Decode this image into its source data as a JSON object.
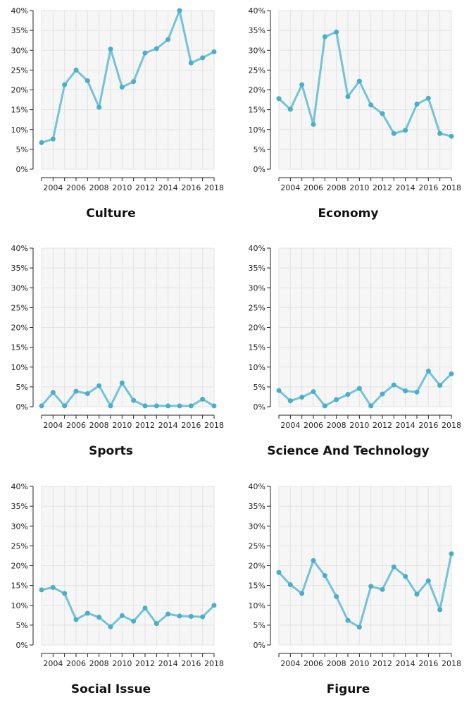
{
  "colors": {
    "line": "#74c3d6",
    "point": "#4aaec8",
    "plot_bg": "#f6f6f6",
    "grid": "#e3e3e3",
    "axis": "#222222"
  },
  "chart_data": [
    {
      "type": "line",
      "title": "Culture",
      "x": [
        2003,
        2004,
        2005,
        2006,
        2007,
        2008,
        2009,
        2010,
        2011,
        2012,
        2013,
        2014,
        2015,
        2016,
        2017,
        2018
      ],
      "values": [
        6.7,
        7.6,
        21.3,
        25.0,
        22.3,
        15.6,
        30.3,
        20.7,
        22.1,
        29.3,
        30.4,
        32.7,
        40.0,
        26.8,
        28.1,
        29.6
      ],
      "xticks": [
        "2004",
        "2006",
        "2008",
        "2010",
        "2012",
        "2014",
        "2016",
        "2018"
      ],
      "yticks": [
        "0%",
        "5%",
        "10%",
        "15%",
        "20%",
        "25%",
        "30%",
        "35%",
        "40%"
      ],
      "ylim": [
        0,
        40
      ],
      "grid": true
    },
    {
      "type": "line",
      "title": "Economy",
      "x": [
        2003,
        2004,
        2005,
        2006,
        2007,
        2008,
        2009,
        2010,
        2011,
        2012,
        2013,
        2014,
        2015,
        2016,
        2017,
        2018
      ],
      "values": [
        17.8,
        15.1,
        21.3,
        11.3,
        33.4,
        34.6,
        18.3,
        22.2,
        16.2,
        14.0,
        9.0,
        9.8,
        16.4,
        17.9,
        9.0,
        8.3
      ],
      "xticks": [
        "2004",
        "2006",
        "2008",
        "2010",
        "2012",
        "2014",
        "2016",
        "2018"
      ],
      "yticks": [
        "0%",
        "5%",
        "10%",
        "15%",
        "20%",
        "25%",
        "30%",
        "35%",
        "40%"
      ],
      "ylim": [
        0,
        40
      ],
      "grid": true
    },
    {
      "type": "line",
      "title": "Sports",
      "x": [
        2003,
        2004,
        2005,
        2006,
        2007,
        2008,
        2009,
        2010,
        2011,
        2012,
        2013,
        2014,
        2015,
        2016,
        2017,
        2018
      ],
      "values": [
        0.2,
        3.6,
        0.2,
        3.9,
        3.3,
        5.3,
        0.2,
        6.0,
        1.6,
        0.2,
        0.2,
        0.2,
        0.2,
        0.2,
        1.9,
        0.2
      ],
      "xticks": [
        "2004",
        "2006",
        "2008",
        "2010",
        "2012",
        "2014",
        "2016",
        "2018"
      ],
      "yticks": [
        "0%",
        "5%",
        "10%",
        "15%",
        "20%",
        "25%",
        "30%",
        "35%",
        "40%"
      ],
      "ylim": [
        0,
        40
      ],
      "grid": true
    },
    {
      "type": "line",
      "title": "Science And Technology",
      "x": [
        2003,
        2004,
        2005,
        2006,
        2007,
        2008,
        2009,
        2010,
        2011,
        2012,
        2013,
        2014,
        2015,
        2016,
        2017,
        2018
      ],
      "values": [
        4.1,
        1.5,
        2.4,
        3.8,
        0.2,
        1.8,
        3.1,
        4.6,
        0.2,
        3.2,
        5.5,
        4.0,
        3.7,
        9.0,
        5.4,
        8.3
      ],
      "xticks": [
        "2004",
        "2006",
        "2008",
        "2010",
        "2012",
        "2014",
        "2016",
        "2018"
      ],
      "yticks": [
        "0%",
        "5%",
        "10%",
        "15%",
        "20%",
        "25%",
        "30%",
        "35%",
        "40%"
      ],
      "ylim": [
        0,
        40
      ],
      "grid": true
    },
    {
      "type": "line",
      "title": "Social Issue",
      "x": [
        2003,
        2004,
        2005,
        2006,
        2007,
        2008,
        2009,
        2010,
        2011,
        2012,
        2013,
        2014,
        2015,
        2016,
        2017,
        2018
      ],
      "values": [
        13.9,
        14.5,
        13.0,
        6.4,
        8.0,
        7.0,
        4.6,
        7.4,
        6.0,
        9.3,
        5.4,
        7.8,
        7.3,
        7.2,
        7.1,
        10.0
      ],
      "xticks": [
        "2004",
        "2006",
        "2008",
        "2010",
        "2012",
        "2014",
        "2016",
        "2018"
      ],
      "yticks": [
        "0%",
        "5%",
        "10%",
        "15%",
        "20%",
        "25%",
        "30%",
        "35%",
        "40%"
      ],
      "ylim": [
        0,
        40
      ],
      "grid": true
    },
    {
      "type": "line",
      "title": "Figure",
      "x": [
        2003,
        2004,
        2005,
        2006,
        2007,
        2008,
        2009,
        2010,
        2011,
        2012,
        2013,
        2014,
        2015,
        2016,
        2017,
        2018
      ],
      "values": [
        18.3,
        15.2,
        13.0,
        21.3,
        17.5,
        12.2,
        6.2,
        4.5,
        14.8,
        14.0,
        19.7,
        17.3,
        12.8,
        16.2,
        8.9,
        23.0
      ],
      "xticks": [
        "2004",
        "2006",
        "2008",
        "2010",
        "2012",
        "2014",
        "2016",
        "2018"
      ],
      "yticks": [
        "0%",
        "5%",
        "10%",
        "15%",
        "20%",
        "25%",
        "30%",
        "35%",
        "40%"
      ],
      "ylim": [
        0,
        40
      ],
      "grid": true
    }
  ]
}
